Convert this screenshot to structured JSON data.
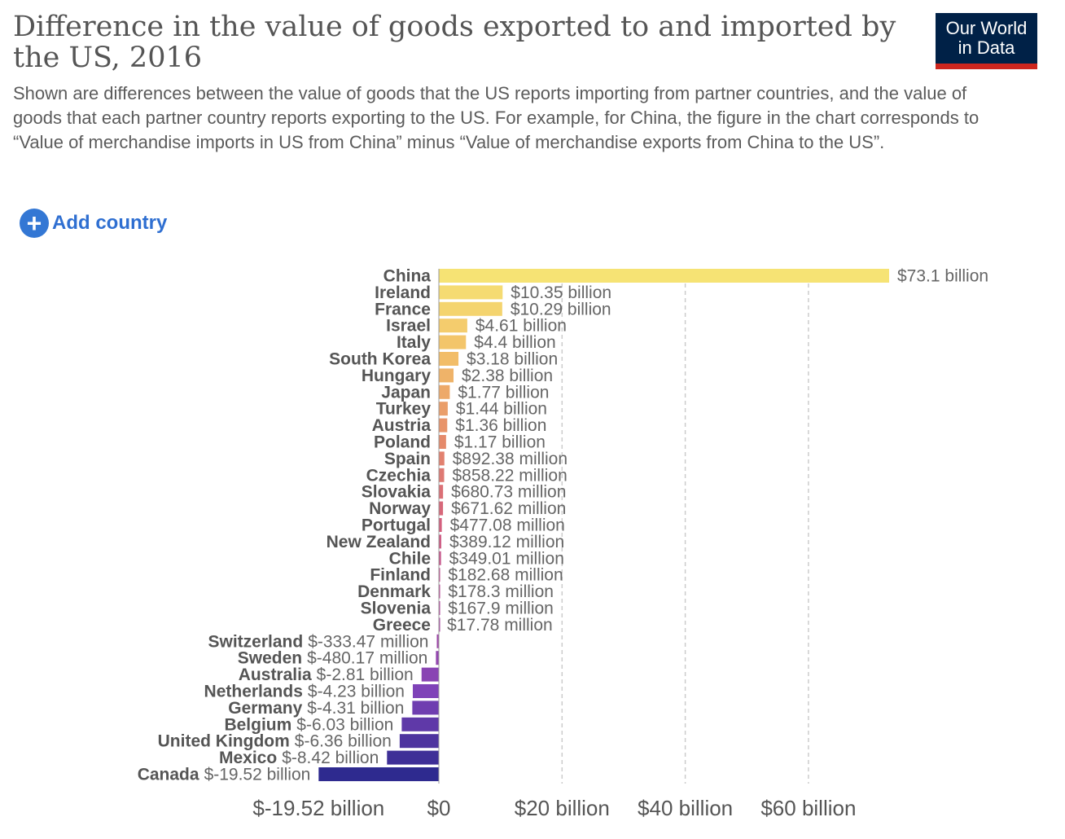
{
  "header": {
    "title": "Difference in the value of goods exported to and imported by the US, 2016",
    "subtitle": "Shown are differences between the value of goods that the US reports importing from partner countries, and the value of goods that each partner country reports exporting to the US. For example, for China, the figure in the chart corresponds to “Value of merchandise imports in US from China” minus “Value of merchandise exports from China to the US”.",
    "logo_line1": "Our World",
    "logo_line2": "in Data"
  },
  "controls": {
    "add_country_label": "Add country",
    "add_icon": "plus-circle-icon"
  },
  "colors": {
    "bar_gradient": [
      "#f6e374",
      "#f2bd68",
      "#e58a6b",
      "#d45f7e",
      "#b24a9e",
      "#7f43b8",
      "#2e2a8f"
    ],
    "grid": "#cccccc",
    "text": "#555555",
    "logo_bg": "#002147",
    "logo_bar": "#ce261e",
    "button": "#3377d4"
  },
  "chart_data": {
    "type": "bar",
    "orientation": "horizontal",
    "unit": "US dollars",
    "categories": [
      "China",
      "Ireland",
      "France",
      "Israel",
      "Italy",
      "South Korea",
      "Hungary",
      "Japan",
      "Turkey",
      "Austria",
      "Poland",
      "Spain",
      "Czechia",
      "Slovakia",
      "Norway",
      "Portugal",
      "New Zealand",
      "Chile",
      "Finland",
      "Denmark",
      "Slovenia",
      "Greece",
      "Switzerland",
      "Sweden",
      "Australia",
      "Netherlands",
      "Germany",
      "Belgium",
      "United Kingdom",
      "Mexico",
      "Canada"
    ],
    "values": [
      73100000000,
      10350000000,
      10290000000,
      4610000000,
      4400000000,
      3180000000,
      2380000000,
      1770000000,
      1440000000,
      1360000000,
      1170000000,
      892380000,
      858220000,
      680730000,
      671620000,
      477080000,
      389120000,
      349010000,
      182680000,
      178300000,
      167900000,
      17780000,
      -333470000,
      -480170000,
      -2810000000,
      -4230000000,
      -4310000000,
      -6030000000,
      -6360000000,
      -8420000000,
      -19520000000
    ],
    "value_labels": [
      "$73.1 billion",
      "$10.35 billion",
      "$10.29 billion",
      "$4.61 billion",
      "$4.4 billion",
      "$3.18 billion",
      "$2.38 billion",
      "$1.77 billion",
      "$1.44 billion",
      "$1.36 billion",
      "$1.17 billion",
      "$892.38 million",
      "$858.22 million",
      "$680.73 million",
      "$671.62 million",
      "$477.08 million",
      "$389.12 million",
      "$349.01 million",
      "$182.68 million",
      "$178.3 million",
      "$167.9 million",
      "$17.78 million",
      "$-333.47 million",
      "$-480.17 million",
      "$-2.81 billion",
      "$-4.23 billion",
      "$-4.31 billion",
      "$-6.03 billion",
      "$-6.36 billion",
      "$-8.42 billion",
      "$-19.52 billion"
    ],
    "x_ticks": [
      -19520000000,
      0,
      20000000000,
      40000000000,
      60000000000
    ],
    "x_tick_labels": [
      "$-19.52 billion",
      "$0",
      "$20 billion",
      "$40 billion",
      "$60 billion"
    ],
    "xlim": [
      -19520000000,
      73100000000
    ],
    "grid": "vertical dashed"
  }
}
